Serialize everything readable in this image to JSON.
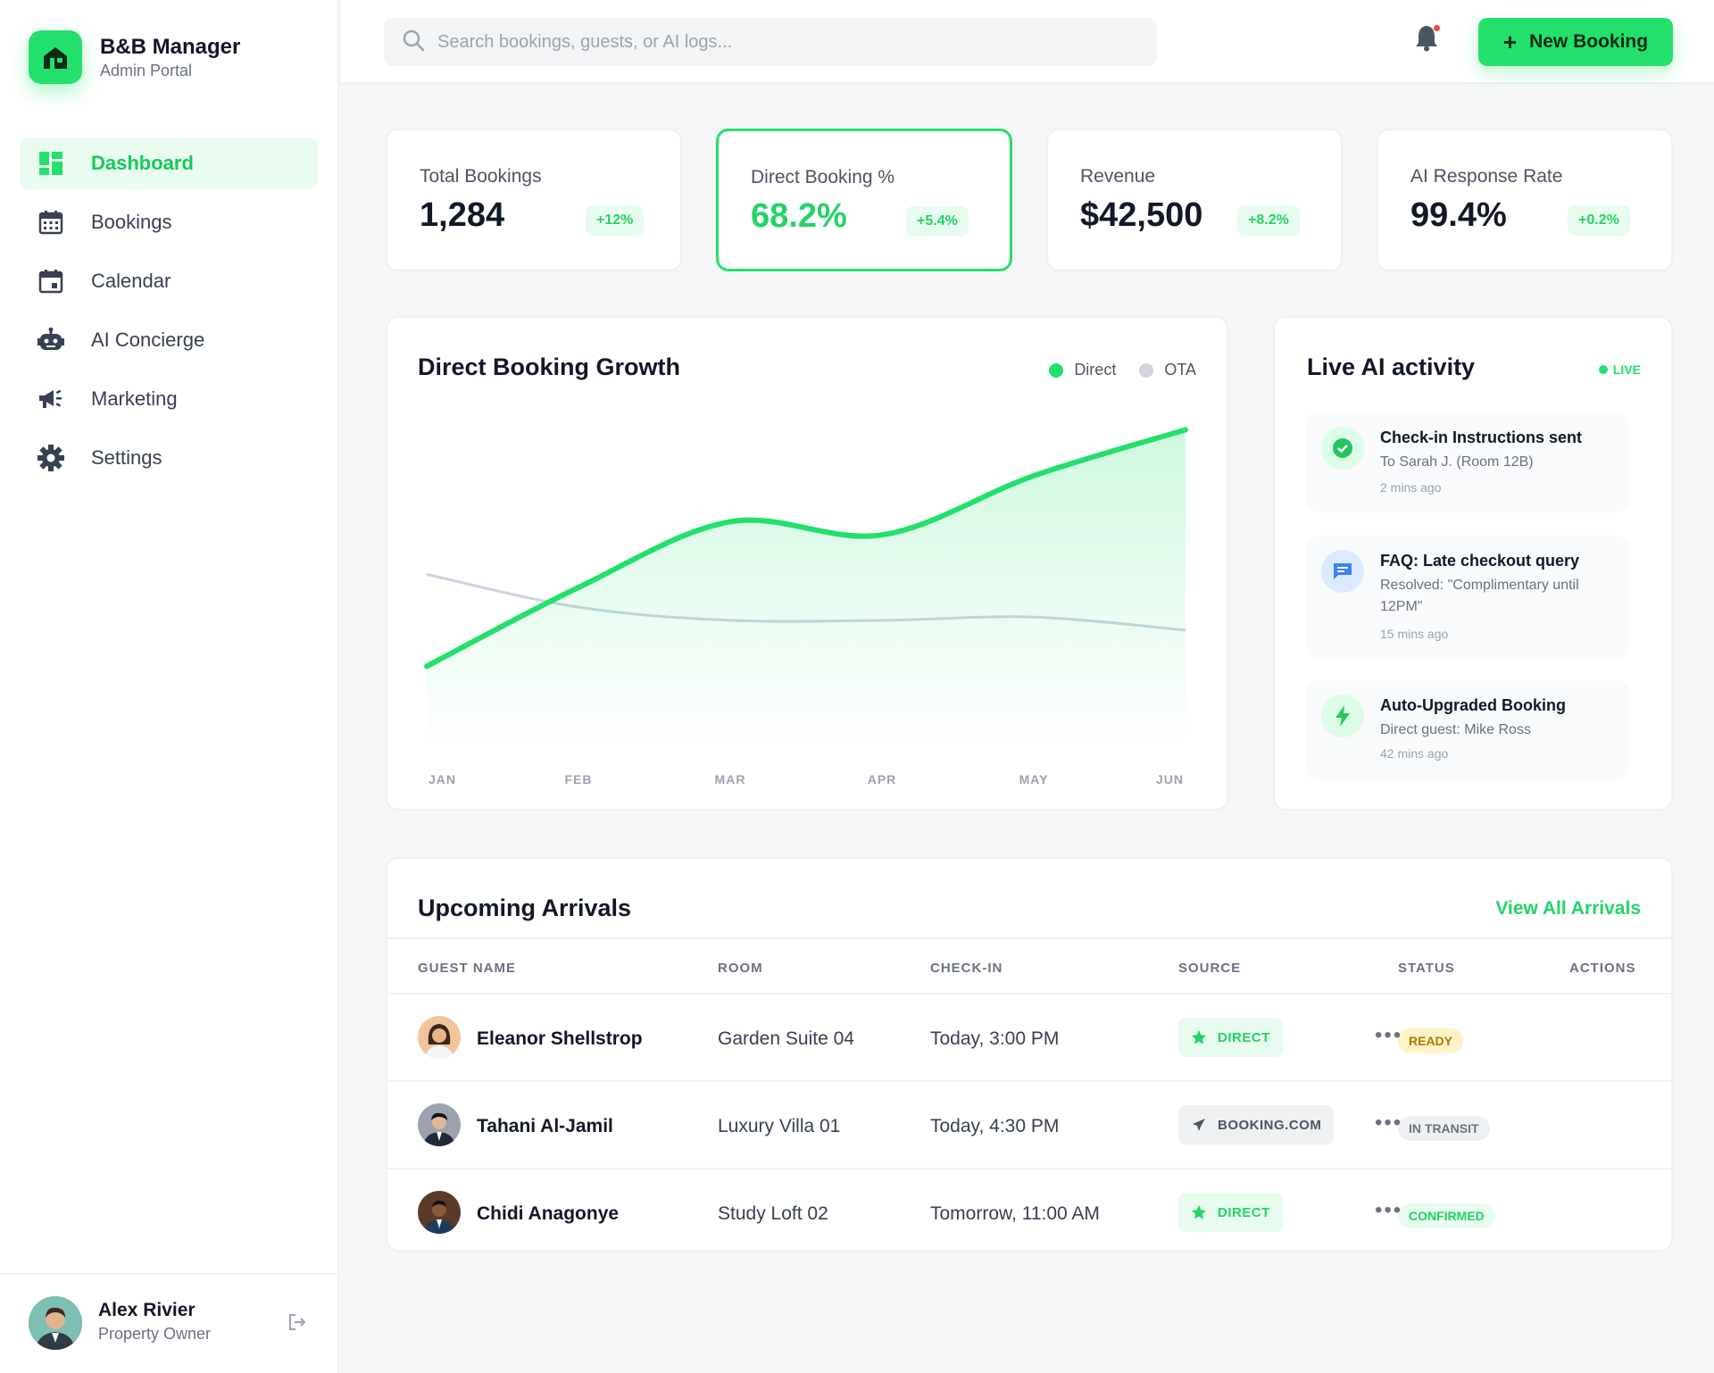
{
  "app": {
    "name": "B&B Manager",
    "subtitle": "Admin Portal"
  },
  "sidebar": {
    "items": [
      {
        "label": "Dashboard",
        "icon": "dashboard-icon",
        "active": true
      },
      {
        "label": "Bookings",
        "icon": "calendar-grid-icon"
      },
      {
        "label": "Calendar",
        "icon": "calendar-icon"
      },
      {
        "label": "AI Concierge",
        "icon": "robot-icon"
      },
      {
        "label": "Marketing",
        "icon": "megaphone-icon"
      },
      {
        "label": "Settings",
        "icon": "gear-icon"
      }
    ]
  },
  "user": {
    "name": "Alex Rivier",
    "role": "Property Owner"
  },
  "topbar": {
    "search_placeholder": "Search bookings, guests, or AI logs...",
    "new_booking_label": "New Booking"
  },
  "stats": [
    {
      "label": "Total Bookings",
      "value": "1,284",
      "change": "+12%"
    },
    {
      "label": "Direct Booking %",
      "value": "68.2%",
      "change": "+5.4%",
      "highlighted": true
    },
    {
      "label": "Revenue",
      "value": "$42,500",
      "change": "+8.2%"
    },
    {
      "label": "AI Response Rate",
      "value": "99.4%",
      "change": "+0.2%"
    }
  ],
  "growth_chart": {
    "title": "Direct Booking Growth",
    "legend": [
      "Direct",
      "OTA"
    ],
    "months": [
      "JAN",
      "FEB",
      "MAR",
      "APR",
      "MAY",
      "JUN"
    ]
  },
  "chart_data": {
    "type": "area",
    "title": "Direct Booking Growth",
    "categories": [
      "JAN",
      "FEB",
      "MAR",
      "APR",
      "MAY",
      "JUN"
    ],
    "series": [
      {
        "name": "Direct",
        "values": [
          20,
          44,
          64,
          60,
          78,
          92
        ],
        "color": "#22e06b"
      },
      {
        "name": "OTA",
        "values": [
          48,
          38,
          34,
          34,
          35,
          31
        ],
        "color": "#cbd5e1"
      }
    ],
    "ylim": [
      0,
      100
    ],
    "grid": false,
    "legend_position": "top-right"
  },
  "ai_activity": {
    "title": "Live AI activity",
    "live_label": "LIVE",
    "items": [
      {
        "title": "Check-in Instructions sent",
        "desc": "To Sarah J. (Room 12B)",
        "time": "2 mins ago",
        "icon": "check-circle-icon"
      },
      {
        "title": "FAQ: Late checkout query",
        "desc": "Resolved: \"Complimentary until 12PM\"",
        "time": "15 mins ago",
        "icon": "chat-icon"
      },
      {
        "title": "Auto-Upgraded Booking",
        "desc": "Direct guest: Mike Ross",
        "time": "42 mins ago",
        "icon": "bolt-icon"
      }
    ]
  },
  "arrivals": {
    "title": "Upcoming Arrivals",
    "view_all": "View All Arrivals",
    "columns": [
      "GUEST NAME",
      "ROOM",
      "CHECK-IN",
      "SOURCE",
      "STATUS",
      "ACTIONS"
    ],
    "rows": [
      {
        "guest": "Eleanor Shellstrop",
        "room": "Garden Suite 04",
        "checkin": "Today, 3:00 PM",
        "source": "DIRECT",
        "status": "READY"
      },
      {
        "guest": "Tahani Al-Jamil",
        "room": "Luxury Villa 01",
        "checkin": "Today, 4:30 PM",
        "source": "BOOKING.COM",
        "status": "IN TRANSIT"
      },
      {
        "guest": "Chidi Anagonye",
        "room": "Study Loft 02",
        "checkin": "Tomorrow, 11:00 AM",
        "source": "DIRECT",
        "status": "CONFIRMED"
      }
    ],
    "actions_glyph": "•••"
  },
  "colors": {
    "accent": "#22e06b",
    "ota_line": "#cbd5e1"
  }
}
